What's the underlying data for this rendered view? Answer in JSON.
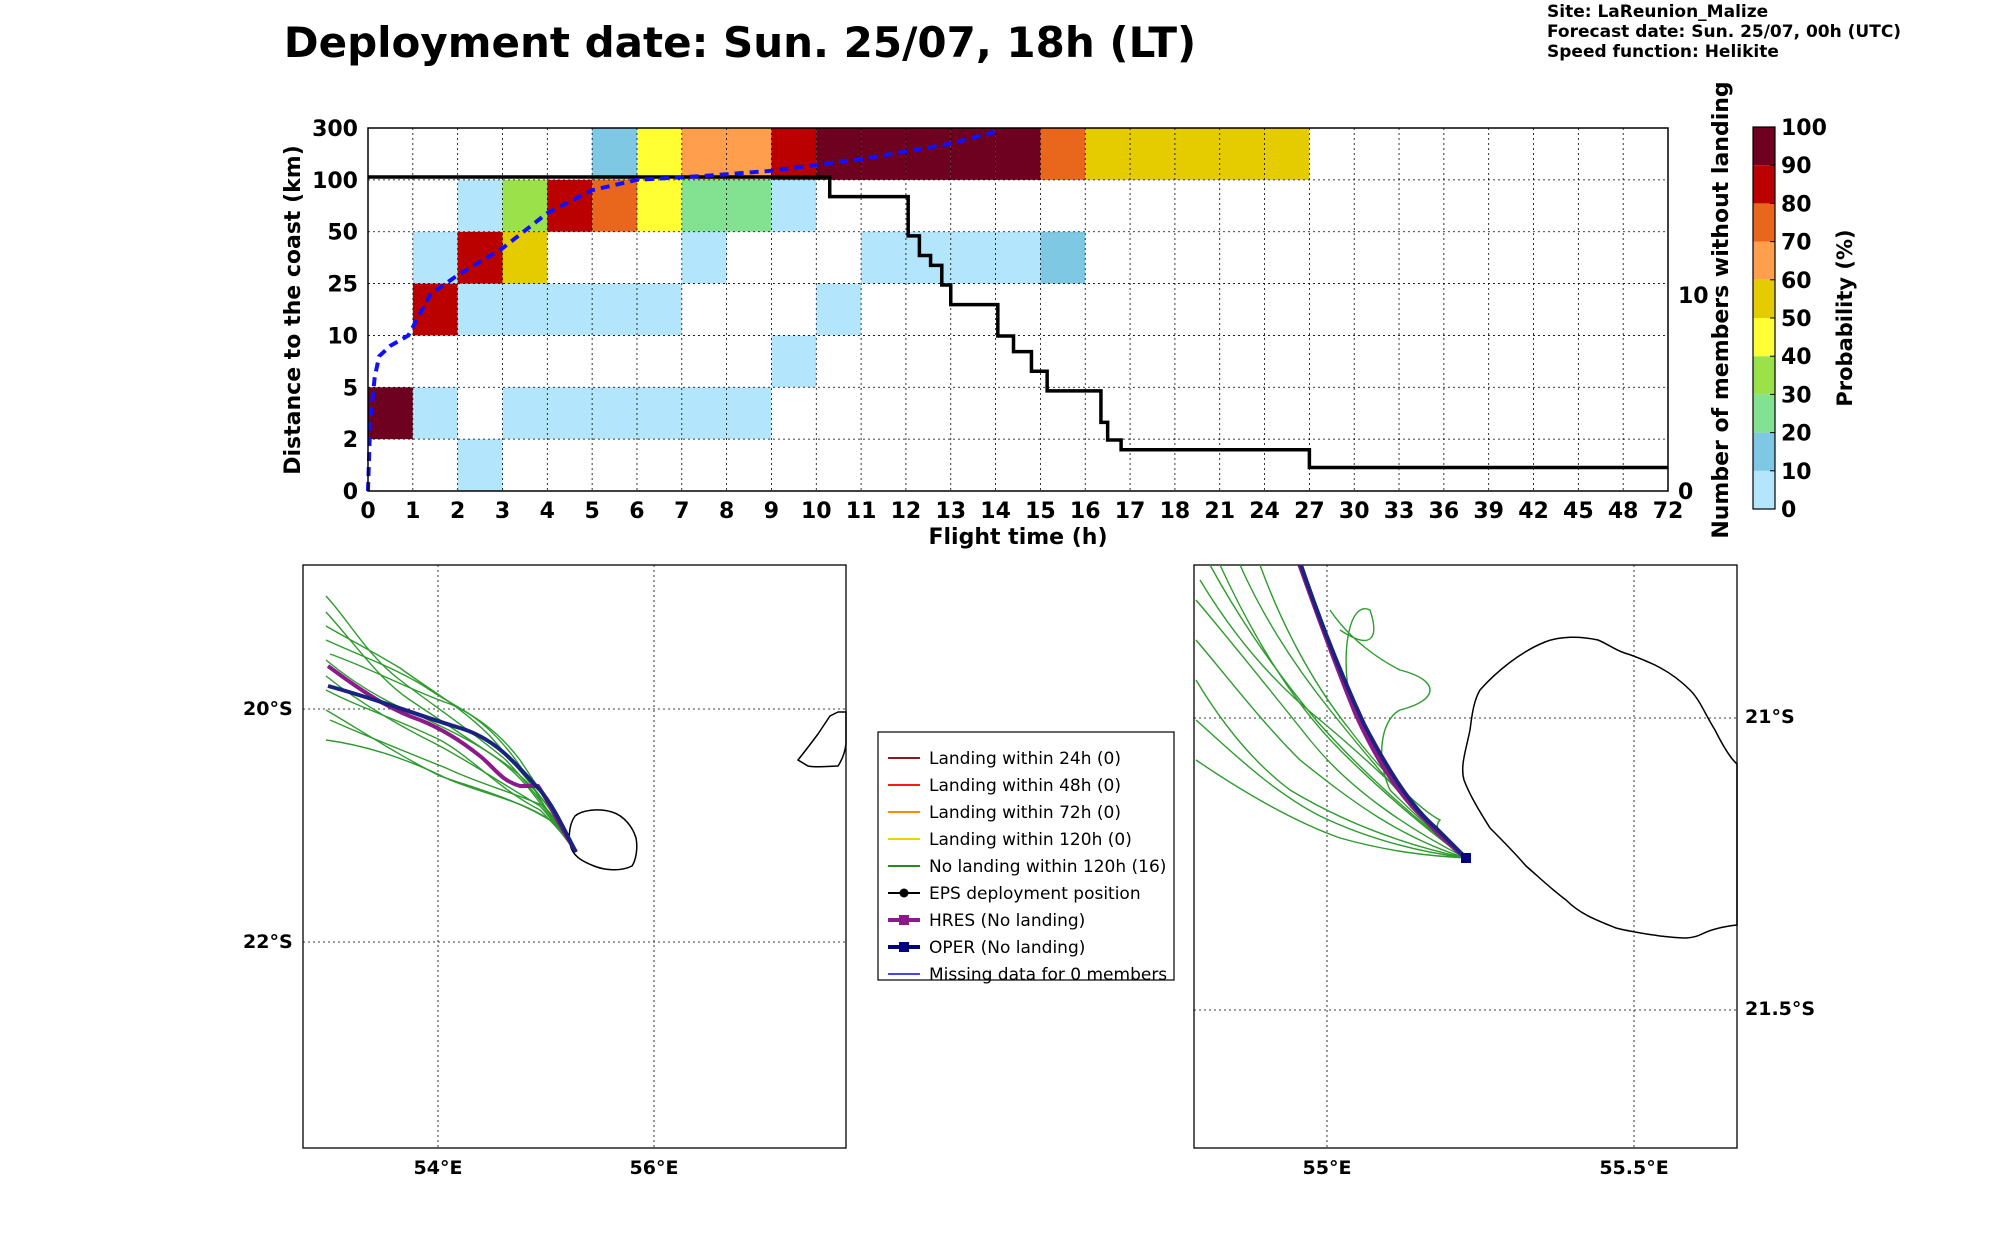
{
  "title": "Deployment date: Sun. 25/07, 18h (LT)",
  "info": {
    "site": "Site: LaReunion_Malize",
    "forecast": "Forecast date: Sun. 25/07, 00h (UTC)",
    "speed": "Speed function: Helikite"
  },
  "colors": {
    "c0": "#b3e5fc",
    "c10": "#7ec8e3",
    "c20": "#82e292",
    "c30": "#9be24a",
    "c40": "#ffff33",
    "c50": "#e5cc00",
    "c60": "#ff9e4d",
    "c70": "#e8671c",
    "c80": "#bb0000",
    "c90": "#6e0020"
  },
  "chart_data": [
    {
      "type": "heatmap",
      "xlabel": "Flight time (h)",
      "ylabel": "Distance to the coast (km)",
      "y2label": "Number of members without landing",
      "x_ticks": [
        "0",
        "1",
        "2",
        "3",
        "4",
        "5",
        "6",
        "7",
        "8",
        "9",
        "10",
        "11",
        "12",
        "13",
        "14",
        "15",
        "16",
        "17",
        "18",
        "21",
        "24",
        "27",
        "30",
        "33",
        "36",
        "39",
        "42",
        "45",
        "48",
        "72"
      ],
      "y_ticks": [
        "0",
        "2",
        "5",
        "10",
        "25",
        "50",
        "100",
        "300"
      ],
      "y2_ticks": [
        "0",
        "10"
      ],
      "colorbar": {
        "label": "Probability (%)",
        "ticks": [
          "0",
          "10",
          "20",
          "30",
          "40",
          "50",
          "60",
          "70",
          "80",
          "90",
          "100"
        ],
        "bins": [
          "c0",
          "c10",
          "c20",
          "c30",
          "c40",
          "c50",
          "c60",
          "c70",
          "c80",
          "c90"
        ]
      },
      "cells": [
        {
          "x": 0,
          "y": 2,
          "c": "c90"
        },
        {
          "x": 1,
          "y": 2,
          "c": "c0"
        },
        {
          "x": 3,
          "y": 2,
          "c": "c0"
        },
        {
          "x": 4,
          "y": 2,
          "c": "c0"
        },
        {
          "x": 5,
          "y": 2,
          "c": "c0"
        },
        {
          "x": 6,
          "y": 2,
          "c": "c0"
        },
        {
          "x": 7,
          "y": 2,
          "c": "c0"
        },
        {
          "x": 8,
          "y": 2,
          "c": "c0"
        },
        {
          "x": 2,
          "y": 0,
          "c": "c0"
        },
        {
          "x": 9,
          "y": 5,
          "c": "c0"
        },
        {
          "x": 1,
          "y": 10,
          "c": "c80"
        },
        {
          "x": 2,
          "y": 10,
          "c": "c0"
        },
        {
          "x": 3,
          "y": 10,
          "c": "c0"
        },
        {
          "x": 4,
          "y": 10,
          "c": "c0"
        },
        {
          "x": 5,
          "y": 10,
          "c": "c0"
        },
        {
          "x": 6,
          "y": 10,
          "c": "c0"
        },
        {
          "x": 10,
          "y": 10,
          "c": "c0"
        },
        {
          "x": 1,
          "y": 25,
          "c": "c0"
        },
        {
          "x": 2,
          "y": 25,
          "c": "c80"
        },
        {
          "x": 3,
          "y": 25,
          "c": "c50"
        },
        {
          "x": 7,
          "y": 25,
          "c": "c0"
        },
        {
          "x": 11,
          "y": 25,
          "c": "c0"
        },
        {
          "x": 12,
          "y": 25,
          "c": "c0"
        },
        {
          "x": 13,
          "y": 25,
          "c": "c0"
        },
        {
          "x": 14,
          "y": 25,
          "c": "c0"
        },
        {
          "x": 15,
          "y": 25,
          "c": "c10"
        },
        {
          "x": 2,
          "y": 50,
          "c": "c0"
        },
        {
          "x": 3,
          "y": 50,
          "c": "c30"
        },
        {
          "x": 4,
          "y": 50,
          "c": "c80"
        },
        {
          "x": 5,
          "y": 50,
          "c": "c70"
        },
        {
          "x": 6,
          "y": 50,
          "c": "c40"
        },
        {
          "x": 7,
          "y": 50,
          "c": "c20"
        },
        {
          "x": 8,
          "y": 50,
          "c": "c20"
        },
        {
          "x": 9,
          "y": 50,
          "c": "c0"
        },
        {
          "x": 5,
          "y": 100,
          "c": "c10"
        },
        {
          "x": 6,
          "y": 100,
          "c": "c40"
        },
        {
          "x": 7,
          "y": 100,
          "c": "c60"
        },
        {
          "x": 8,
          "y": 100,
          "c": "c60"
        },
        {
          "x": 9,
          "y": 100,
          "c": "c80"
        },
        {
          "x": 10,
          "y": 100,
          "c": "c90"
        },
        {
          "x": 11,
          "y": 100,
          "c": "c90"
        },
        {
          "x": 12,
          "y": 100,
          "c": "c90"
        },
        {
          "x": 13,
          "y": 100,
          "c": "c90"
        },
        {
          "x": 14,
          "y": 100,
          "c": "c90"
        },
        {
          "x": 15,
          "y": 100,
          "c": "c70"
        },
        {
          "x": 16,
          "y": 100,
          "c": "c50"
        },
        {
          "x": 17,
          "y": 100,
          "c": "c50"
        },
        {
          "x": 18,
          "y": 100,
          "c": "c50"
        },
        {
          "x": 21,
          "y": 100,
          "c": "c50"
        },
        {
          "x": 24,
          "y": 100,
          "c": "c50"
        }
      ],
      "members_without_landing_step": [
        {
          "x": 0,
          "y": 16
        },
        {
          "x": 10.3,
          "y": 15
        },
        {
          "x": 12.05,
          "y": 13
        },
        {
          "x": 12.3,
          "y": 12
        },
        {
          "x": 12.55,
          "y": 11.5
        },
        {
          "x": 12.8,
          "y": 10.5
        },
        {
          "x": 13,
          "y": 9.5
        },
        {
          "x": 14.05,
          "y": 7.9
        },
        {
          "x": 14.4,
          "y": 7.1
        },
        {
          "x": 14.8,
          "y": 6.1
        },
        {
          "x": 15.15,
          "y": 5.1
        },
        {
          "x": 16.35,
          "y": 3.5
        },
        {
          "x": 16.5,
          "y": 2.6
        },
        {
          "x": 16.8,
          "y": 2.1
        },
        {
          "x": 27,
          "y": 1.2
        }
      ],
      "median_distance_km": [
        {
          "x": 0,
          "y": 0
        },
        {
          "x": 0.05,
          "y": 3
        },
        {
          "x": 0.15,
          "y": 6
        },
        {
          "x": 0.25,
          "y": 8
        },
        {
          "x": 0.5,
          "y": 9
        },
        {
          "x": 0.9,
          "y": 10
        },
        {
          "x": 1.4,
          "y": 22
        },
        {
          "x": 2.0,
          "y": 29
        },
        {
          "x": 3.0,
          "y": 42
        },
        {
          "x": 4.0,
          "y": 68
        },
        {
          "x": 5.0,
          "y": 90
        },
        {
          "x": 6.0,
          "y": 100
        },
        {
          "x": 7.5,
          "y": 115
        },
        {
          "x": 9.0,
          "y": 135
        },
        {
          "x": 11.0,
          "y": 180
        },
        {
          "x": 13.0,
          "y": 240
        },
        {
          "x": 14.0,
          "y": 285
        }
      ]
    },
    {
      "type": "map",
      "name": "regional",
      "x_ticks": [
        "54°E",
        "56°E"
      ],
      "y_ticks": [
        "20°S",
        "22°S"
      ]
    },
    {
      "type": "map",
      "name": "zoom",
      "x_ticks": [
        "55°E",
        "55.5°E"
      ],
      "y_ticks": [
        "21°S",
        "21.5°S"
      ]
    }
  ],
  "legend": [
    {
      "label": "Landing within 24h (0)",
      "color": "#8b1a1a",
      "marker": "none"
    },
    {
      "label": "Landing within 48h (0)",
      "color": "#ff1a1a",
      "marker": "none"
    },
    {
      "label": "Landing within 72h (0)",
      "color": "#ff8c00",
      "marker": "none"
    },
    {
      "label": "Landing within 120h (0)",
      "color": "#f0d000",
      "marker": "none"
    },
    {
      "label": "No landing within 120h (16)",
      "color": "#1e8c1e",
      "marker": "none"
    },
    {
      "label": "EPS deployment position",
      "color": "#000000",
      "marker": "dot"
    },
    {
      "label": "HRES (No landing)",
      "color": "#8b1a8b",
      "marker": "square"
    },
    {
      "label": "OPER (No landing)",
      "color": "#000080",
      "marker": "square"
    },
    {
      "label": "Missing data for 0 members",
      "color": "#4444ff",
      "marker": "none"
    }
  ]
}
